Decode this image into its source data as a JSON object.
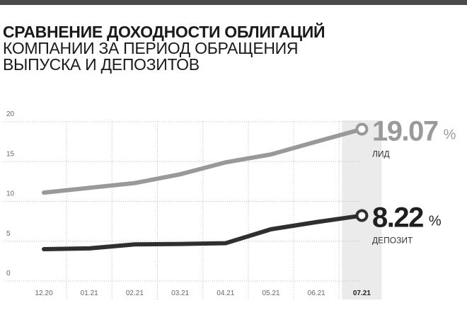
{
  "title": {
    "line1": "СРАВНЕНИЕ ДОХОДНОСТИ ОБЛИГАЦИЙ",
    "line2": "КОМПАНИИ ЗА ПЕРИОД ОБРАЩЕНИЯ",
    "line3": "ВЫПУСКА И ДЕПОЗИТОВ"
  },
  "colors": {
    "top_bar": "#4a4a4a",
    "series_lid": "#999999",
    "series_deposit": "#2f2f2f",
    "highlight_band": "#ebebeb",
    "grid": "#bdbdbd",
    "tick_text": "#666666"
  },
  "chart_data": {
    "type": "line",
    "categories": [
      "12.20",
      "01.21",
      "02.21",
      "03.21",
      "04.21",
      "05.21",
      "06.21",
      "07.21"
    ],
    "highlighted_category": "07.21",
    "ylim": [
      0,
      20
    ],
    "yticks": [
      "0",
      "5",
      "10",
      "15",
      "20"
    ],
    "series": [
      {
        "name": "ЛИД",
        "values": [
          11.1,
          11.7,
          12.3,
          13.4,
          14.9,
          15.9,
          17.5,
          19.07
        ],
        "end_label": {
          "value": "19.07",
          "unit": "%",
          "name": "ЛИД"
        }
      },
      {
        "name": "ДЕПОЗИТ",
        "values": [
          4.0,
          4.1,
          4.6,
          4.65,
          4.75,
          6.5,
          7.4,
          8.22
        ],
        "end_label": {
          "value": "8.22",
          "unit": "%",
          "name": "ДЕПОЗИТ"
        }
      }
    ]
  }
}
